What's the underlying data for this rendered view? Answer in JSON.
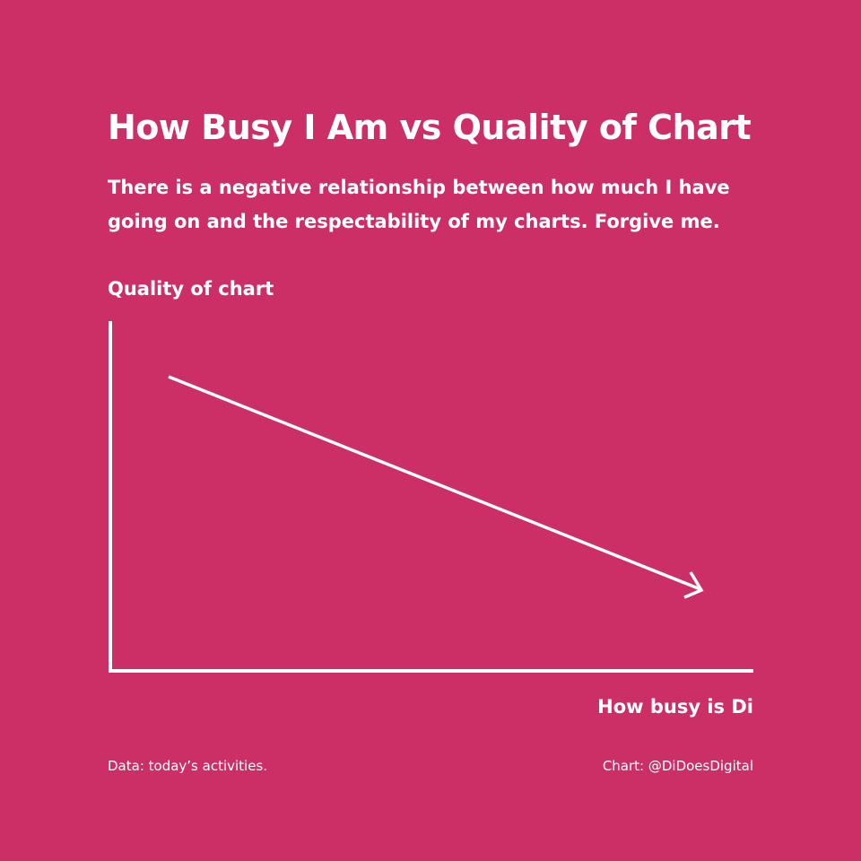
{
  "title": "How Busy I Am vs Quality of Chart",
  "subtitle": "There is a negative relationship between how much I have going on and the respectability of my charts. Forgive me.",
  "y_label": "Quality of chart",
  "x_label": "How busy is Di",
  "footer": {
    "source": "Data: today’s activities.",
    "credit": "Chart: @DiDoesDigital"
  }
}
